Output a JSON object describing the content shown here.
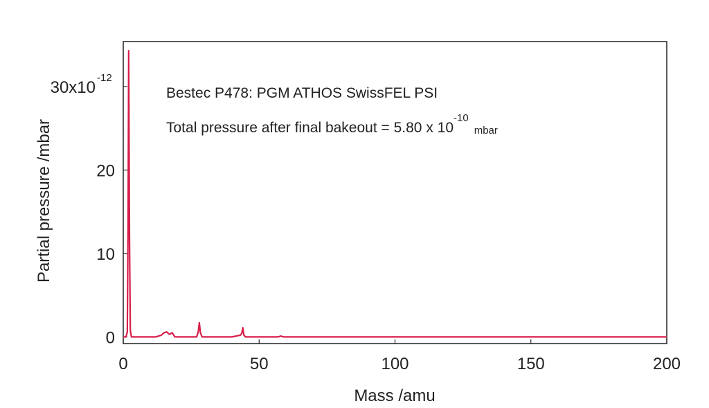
{
  "chart_data": {
    "type": "line",
    "annotations": [
      "Bestec P478: PGM ATHOS SwissFEL PSI",
      "Total pressure after final bakeout = 5.80 x 10",
      "-10",
      "mbar"
    ],
    "xlabel": "Mass /amu",
    "ylabel": "Partial pressure /mbar",
    "y_tick_exponent": "-12",
    "x": [
      0,
      1,
      1.5,
      1.8,
      2,
      2.3,
      2.6,
      3,
      12,
      14,
      15,
      16,
      17,
      18,
      19,
      27,
      27.6,
      28,
      28.4,
      29,
      40,
      43,
      43.6,
      44,
      44.4,
      45,
      57,
      58,
      59,
      200
    ],
    "values": [
      0,
      0,
      0.6,
      15,
      34.3,
      12,
      0.8,
      0,
      0,
      0.2,
      0.5,
      0.6,
      0.3,
      0.5,
      0,
      0,
      0.6,
      1.7,
      0.5,
      0,
      0,
      0.2,
      0.4,
      1.1,
      0.2,
      0,
      0,
      0.1,
      0,
      0
    ],
    "color": "#d81e4a",
    "xlim": [
      0,
      200
    ],
    "ylim": [
      -0.8,
      35.4
    ],
    "xticks": [
      0,
      50,
      100,
      150,
      200
    ],
    "yticks": [
      0,
      10,
      20,
      {
        "value": 30,
        "label": "30x10"
      }
    ]
  }
}
